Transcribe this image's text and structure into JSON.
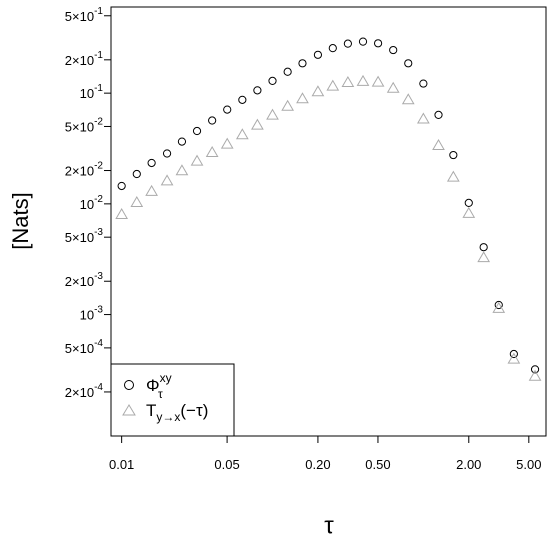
{
  "chart_data": {
    "type": "scatter",
    "title": "",
    "xlabel": "τ",
    "ylabel": "[Nats]",
    "xscale": "log",
    "yscale": "log",
    "xlim": [
      0.0085,
      6.5
    ],
    "ylim": [
      8e-05,
      0.6
    ],
    "grid": false,
    "legend_position": "bottom-left",
    "x_ticks": [
      {
        "value": 0.01,
        "label": "0.01"
      },
      {
        "value": 0.05,
        "label": "0.05"
      },
      {
        "value": 0.2,
        "label": "0.20"
      },
      {
        "value": 0.5,
        "label": "0.50"
      },
      {
        "value": 2,
        "label": "2.00"
      },
      {
        "value": 5,
        "label": "5.00"
      }
    ],
    "y_ticks": [
      {
        "value": 0.0002,
        "mantissa": "2",
        "exponent": "-4"
      },
      {
        "value": 0.0005,
        "mantissa": "5",
        "exponent": "-4"
      },
      {
        "value": 0.001,
        "mantissa": "",
        "exponent": "-3"
      },
      {
        "value": 0.002,
        "mantissa": "2",
        "exponent": "-3"
      },
      {
        "value": 0.005,
        "mantissa": "5",
        "exponent": "-3"
      },
      {
        "value": 0.01,
        "mantissa": "",
        "exponent": "-2"
      },
      {
        "value": 0.02,
        "mantissa": "2",
        "exponent": "-2"
      },
      {
        "value": 0.05,
        "mantissa": "5",
        "exponent": "-2"
      },
      {
        "value": 0.1,
        "mantissa": "",
        "exponent": "-1"
      },
      {
        "value": 0.2,
        "mantissa": "2",
        "exponent": "-1"
      },
      {
        "value": 0.5,
        "mantissa": "5",
        "exponent": "-1"
      }
    ],
    "series": [
      {
        "legend_main": "Φ",
        "legend_sup": "xy",
        "legend_sub": "τ",
        "marker": "circle",
        "color": "#000000",
        "x": [
          0.01,
          0.0126,
          0.0158,
          0.02,
          0.0251,
          0.0316,
          0.0398,
          0.0501,
          0.0631,
          0.0794,
          0.1,
          0.126,
          0.158,
          0.2,
          0.251,
          0.316,
          0.398,
          0.501,
          0.631,
          0.794,
          1.0,
          1.26,
          1.58,
          2.0,
          2.51,
          3.16,
          3.98,
          5.5
        ],
        "y": [
          0.0145,
          0.0186,
          0.0234,
          0.0285,
          0.0365,
          0.0455,
          0.0566,
          0.071,
          0.087,
          0.106,
          0.129,
          0.156,
          0.186,
          0.222,
          0.255,
          0.28,
          0.292,
          0.282,
          0.245,
          0.186,
          0.122,
          0.0636,
          0.0276,
          0.0102,
          0.00406,
          0.00122,
          0.00044,
          0.00032
        ]
      },
      {
        "legend_main": "T",
        "legend_sub": "y→x",
        "legend_suffix": "(−τ)",
        "marker": "triangle",
        "color": "#aaaaaa",
        "x": [
          0.01,
          0.0126,
          0.0158,
          0.02,
          0.0251,
          0.0316,
          0.0398,
          0.0501,
          0.0631,
          0.0794,
          0.1,
          0.126,
          0.158,
          0.2,
          0.251,
          0.316,
          0.398,
          0.501,
          0.631,
          0.794,
          1.0,
          1.26,
          1.58,
          2.0,
          2.51,
          3.16,
          3.98,
          5.5
        ],
        "y": [
          0.0081,
          0.0104,
          0.0131,
          0.0163,
          0.0201,
          0.0246,
          0.0294,
          0.035,
          0.0425,
          0.052,
          0.064,
          0.077,
          0.09,
          0.104,
          0.117,
          0.126,
          0.129,
          0.127,
          0.112,
          0.088,
          0.059,
          0.034,
          0.0176,
          0.0083,
          0.0033,
          0.00115,
          0.0004,
          0.00028
        ]
      }
    ]
  }
}
